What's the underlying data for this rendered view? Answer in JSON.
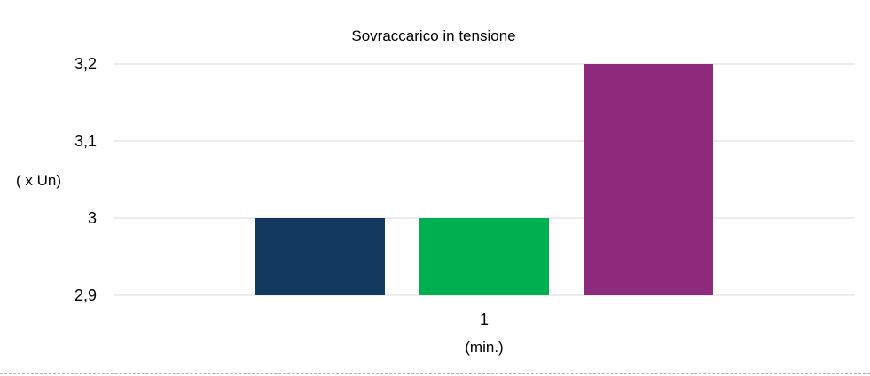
{
  "chart_data": {
    "type": "bar",
    "title": "Sovraccarico in tensione",
    "ylabel": "( x Un)",
    "xlabel": "(min.)",
    "categories": [
      "1"
    ],
    "ylim": [
      2.9,
      3.2
    ],
    "yticks": [
      "2,9",
      "3",
      "3,1",
      "3,2"
    ],
    "ytick_values": [
      2.9,
      3.0,
      3.1,
      3.2
    ],
    "grid": true,
    "legend": "none",
    "series": [
      {
        "values": [
          3.0
        ],
        "color": "#133A5E"
      },
      {
        "values": [
          3.0
        ],
        "color": "#00B050"
      },
      {
        "values": [
          3.2
        ],
        "color": "#8E2A7C"
      }
    ]
  }
}
